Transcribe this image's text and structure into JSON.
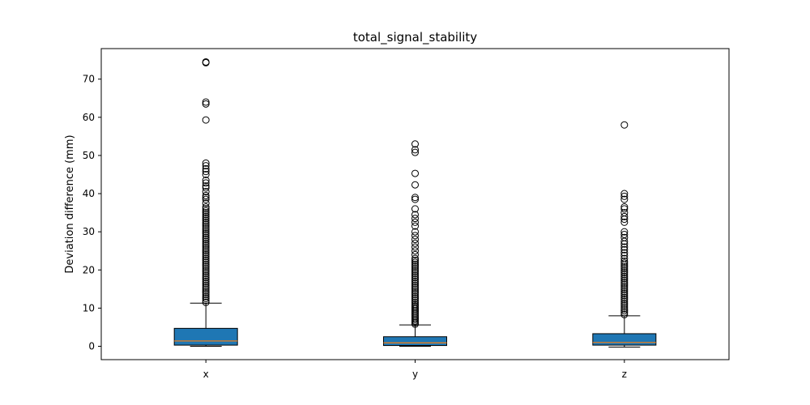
{
  "chart_data": {
    "type": "box",
    "title": "total_signal_stability",
    "xlabel": "",
    "ylabel": "Deviation difference (mm)",
    "ylim": [
      -3.5,
      78
    ],
    "yticks": [
      0,
      10,
      20,
      30,
      40,
      50,
      60,
      70
    ],
    "grid": false,
    "colors": {
      "box_fill": "#1f77b4",
      "median": "#ff7f0e",
      "edge": "#000000"
    },
    "categories": [
      "x",
      "y",
      "z"
    ],
    "boxes": [
      {
        "category": "x",
        "whisker_low": 0.0,
        "q1": 0.3,
        "median": 1.4,
        "q3": 4.7,
        "whisker_high": 11.3,
        "outliers": [
          11.5,
          12.0,
          12.5,
          13.0,
          13.5,
          14.0,
          14.5,
          15.0,
          15.5,
          16.0,
          16.5,
          17.0,
          17.5,
          18.0,
          18.5,
          19.0,
          19.5,
          20.0,
          20.5,
          21.0,
          21.5,
          22.0,
          22.5,
          23.0,
          23.5,
          24.0,
          24.5,
          25.0,
          25.5,
          26.0,
          26.5,
          27.0,
          27.5,
          28.0,
          28.5,
          29.0,
          29.5,
          30.0,
          30.5,
          31.0,
          31.5,
          32.0,
          32.5,
          33.0,
          33.5,
          34.0,
          34.5,
          35.0,
          35.5,
          36.0,
          36.5,
          37.5,
          38.5,
          39.0,
          39.5,
          40.5,
          41.5,
          42.0,
          42.8,
          43.5,
          45.0,
          45.8,
          46.5,
          47.3,
          48.0,
          59.3,
          63.5,
          64.0,
          74.3,
          74.5
        ]
      },
      {
        "category": "y",
        "whisker_low": 0.0,
        "q1": 0.2,
        "median": 0.9,
        "q3": 2.5,
        "whisker_high": 5.6,
        "outliers": [
          5.8,
          6.2,
          6.6,
          7.0,
          7.4,
          7.8,
          8.2,
          8.6,
          9.0,
          9.4,
          9.8,
          10.2,
          10.6,
          11.0,
          11.5,
          12.0,
          12.5,
          13.0,
          13.5,
          14.0,
          14.5,
          15.0,
          15.5,
          16.0,
          16.5,
          17.0,
          17.5,
          18.0,
          18.5,
          19.0,
          19.5,
          20.0,
          20.5,
          21.0,
          21.5,
          22.0,
          22.5,
          23.0,
          24.0,
          25.0,
          26.0,
          27.0,
          28.0,
          29.0,
          30.0,
          31.5,
          32.5,
          33.5,
          34.5,
          36.0,
          38.5,
          39.0,
          42.3,
          45.3,
          50.8,
          51.5,
          53.0
        ]
      },
      {
        "category": "z",
        "whisker_low": -0.2,
        "q1": 0.3,
        "median": 1.0,
        "q3": 3.3,
        "whisker_high": 8.0,
        "outliers": [
          8.3,
          8.8,
          9.3,
          9.8,
          10.3,
          10.8,
          11.3,
          11.8,
          12.3,
          12.8,
          13.3,
          13.8,
          14.3,
          14.8,
          15.3,
          15.8,
          16.3,
          16.8,
          17.3,
          17.8,
          18.3,
          18.8,
          19.3,
          19.8,
          20.3,
          20.8,
          21.3,
          21.8,
          22.3,
          23.0,
          23.8,
          24.5,
          25.3,
          26.0,
          26.8,
          27.5,
          28.5,
          29.3,
          30.0,
          32.5,
          33.3,
          34.0,
          35.0,
          36.0,
          36.5,
          38.5,
          39.3,
          40.0,
          58.0
        ]
      }
    ]
  }
}
